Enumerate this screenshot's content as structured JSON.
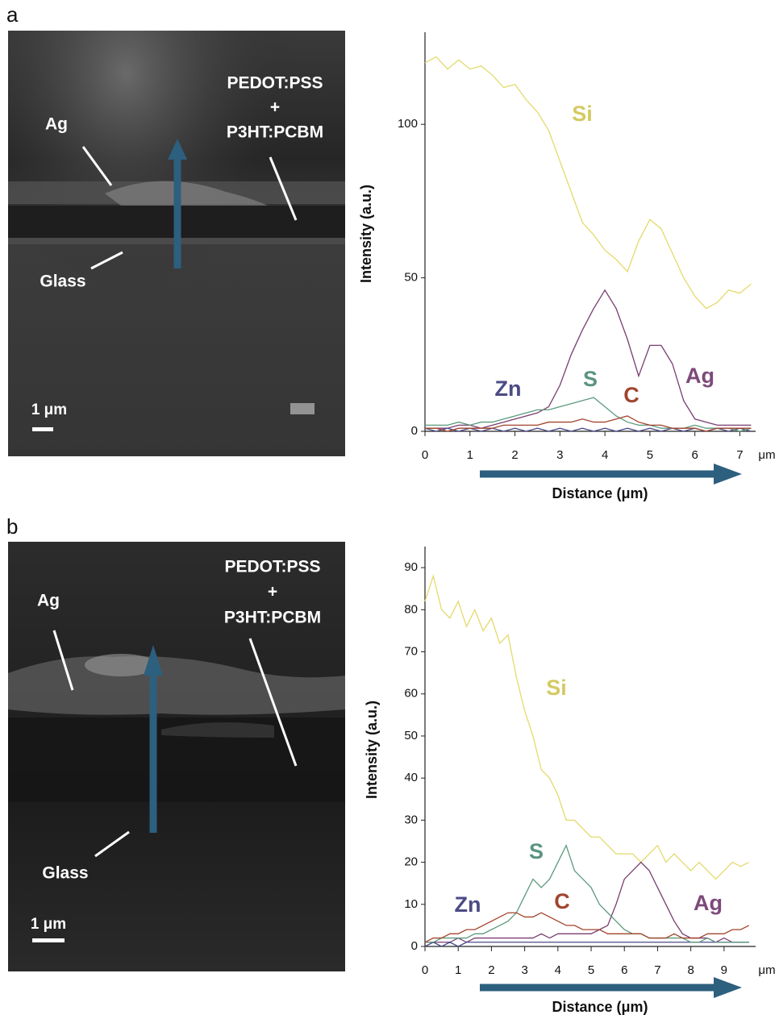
{
  "figure": {
    "panels": [
      {
        "label": "a",
        "image": {
          "labels": [
            "Ag",
            "PEDOT:PSS",
            "+",
            "P3HT:PCBM",
            "Glass"
          ],
          "scale_bar": "1 μm"
        }
      },
      {
        "label": "b",
        "image": {
          "labels": [
            "Ag",
            "PEDOT:PSS",
            "+",
            "P3HT:PCBM",
            "Glass"
          ],
          "scale_bar": "1 μm"
        }
      }
    ]
  },
  "chart_data": [
    {
      "type": "line",
      "x_label": "Distance (μm)",
      "x_unit": "μm",
      "y_label": "Intensity (a.u.)",
      "xlim": [
        0,
        7.35
      ],
      "xticks": [
        0,
        1,
        2,
        3,
        4,
        5,
        6,
        7
      ],
      "ylim": [
        0,
        130
      ],
      "yticks": [
        0,
        50,
        100
      ],
      "x": [
        0,
        0.25,
        0.5,
        0.75,
        1,
        1.25,
        1.5,
        1.75,
        2,
        2.25,
        2.5,
        2.75,
        3,
        3.25,
        3.5,
        3.75,
        4,
        4.25,
        4.5,
        4.75,
        5,
        5.25,
        5.5,
        5.75,
        6,
        6.25,
        6.5,
        6.75,
        7,
        7.25
      ],
      "series": [
        {
          "name": "Si",
          "color": "#e4da6c",
          "values": [
            120,
            122,
            118,
            121,
            118,
            119,
            116,
            112,
            113,
            108,
            104,
            98,
            88,
            78,
            68,
            64,
            59,
            56,
            52,
            62,
            69,
            66,
            58,
            50,
            44,
            40,
            42,
            46,
            45,
            48
          ]
        },
        {
          "name": "Ag",
          "color": "#7a3d70",
          "values": [
            1,
            1,
            1,
            2,
            2,
            1,
            2,
            3,
            4,
            5,
            6,
            8,
            15,
            25,
            33,
            40,
            46,
            40,
            30,
            18,
            28,
            28,
            22,
            10,
            4,
            3,
            2,
            2,
            2,
            2
          ]
        },
        {
          "name": "Zn",
          "color": "#4a4a8a",
          "values": [
            1,
            0,
            1,
            0,
            1,
            0,
            1,
            0,
            1,
            0,
            1,
            0,
            1,
            0,
            1,
            0,
            1,
            0,
            1,
            0,
            1,
            0,
            1,
            0,
            1,
            0,
            1,
            0,
            1,
            0
          ]
        },
        {
          "name": "S",
          "color": "#5c9a7e",
          "values": [
            2,
            2,
            2,
            3,
            2,
            3,
            3,
            4,
            5,
            6,
            7,
            7,
            8,
            9,
            10,
            11,
            8,
            5,
            3,
            2,
            2,
            1,
            1,
            1,
            2,
            1,
            1,
            1,
            0,
            1
          ]
        },
        {
          "name": "C",
          "color": "#a3432c",
          "values": [
            1,
            1,
            0,
            1,
            1,
            1,
            1,
            2,
            2,
            2,
            2,
            3,
            3,
            3,
            4,
            3,
            3,
            4,
            5,
            3,
            2,
            2,
            1,
            1,
            1,
            0,
            1,
            1,
            1,
            1
          ]
        }
      ]
    },
    {
      "type": "line",
      "x_label": "Distance (μm)",
      "x_unit": "μm",
      "y_label": "Intensity (a.u.)",
      "xlim": [
        0,
        9.95
      ],
      "xticks": [
        0,
        1,
        2,
        3,
        4,
        5,
        6,
        7,
        8,
        9
      ],
      "ylim": [
        0,
        95
      ],
      "yticks": [
        0,
        10,
        20,
        30,
        40,
        50,
        60,
        70,
        80,
        90
      ],
      "x": [
        0,
        0.25,
        0.5,
        0.75,
        1,
        1.25,
        1.5,
        1.75,
        2,
        2.25,
        2.5,
        2.75,
        3,
        3.25,
        3.5,
        3.75,
        4,
        4.25,
        4.5,
        4.75,
        5,
        5.25,
        5.5,
        5.75,
        6,
        6.25,
        6.5,
        6.75,
        7,
        7.25,
        7.5,
        7.75,
        8,
        8.25,
        8.5,
        8.75,
        9,
        9.25,
        9.5,
        9.75
      ],
      "series": [
        {
          "name": "Si",
          "color": "#e4da6c",
          "values": [
            82,
            88,
            80,
            78,
            82,
            76,
            80,
            75,
            78,
            72,
            74,
            64,
            56,
            50,
            42,
            40,
            36,
            30,
            30,
            28,
            26,
            26,
            24,
            22,
            22,
            22,
            20,
            22,
            24,
            20,
            22,
            20,
            18,
            20,
            18,
            16,
            18,
            20,
            19,
            20
          ]
        },
        {
          "name": "Ag",
          "color": "#7a3d70",
          "values": [
            1,
            1,
            1,
            1,
            2,
            1,
            2,
            2,
            2,
            2,
            2,
            2,
            2,
            2,
            3,
            2,
            3,
            3,
            3,
            3,
            3,
            4,
            5,
            10,
            16,
            18,
            20,
            18,
            14,
            10,
            6,
            3,
            2,
            2,
            2,
            1,
            2,
            1,
            1,
            1
          ]
        },
        {
          "name": "Zn",
          "color": "#4a4a8a",
          "values": [
            0,
            1,
            0,
            1,
            0,
            1,
            1,
            1,
            1,
            1,
            1,
            1,
            1,
            1,
            1,
            1,
            1,
            1,
            1,
            1,
            1,
            1,
            1,
            1,
            1,
            1,
            1,
            1,
            1,
            1,
            1,
            1,
            1,
            1,
            1,
            1,
            1,
            1,
            1,
            1
          ]
        },
        {
          "name": "S",
          "color": "#5c9a7e",
          "values": [
            1,
            1,
            2,
            2,
            2,
            2,
            3,
            3,
            4,
            5,
            6,
            8,
            12,
            16,
            14,
            16,
            20,
            24,
            18,
            16,
            14,
            10,
            8,
            6,
            4,
            3,
            3,
            2,
            2,
            2,
            2,
            2,
            1,
            1,
            2,
            1,
            1,
            1,
            1,
            1
          ]
        },
        {
          "name": "C",
          "color": "#a3432c",
          "values": [
            1,
            2,
            2,
            3,
            3,
            4,
            4,
            5,
            6,
            7,
            8,
            8,
            7,
            7,
            8,
            7,
            6,
            5,
            5,
            4,
            4,
            4,
            3,
            3,
            3,
            3,
            3,
            2,
            2,
            2,
            3,
            2,
            2,
            2,
            3,
            3,
            3,
            4,
            4,
            5
          ]
        }
      ]
    }
  ]
}
